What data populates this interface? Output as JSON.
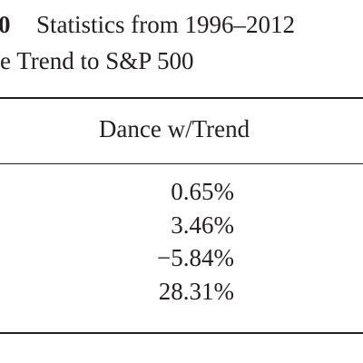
{
  "header": {
    "label": "0",
    "title": "Statistics from 1996–2012",
    "subtitle": "e Trend to S&P 500"
  },
  "table": {
    "columns": [
      "Dance w/Trend"
    ],
    "rows": [
      [
        "0.65%"
      ],
      [
        "3.46%"
      ],
      [
        "−5.84%"
      ],
      [
        "28.31%"
      ]
    ]
  }
}
